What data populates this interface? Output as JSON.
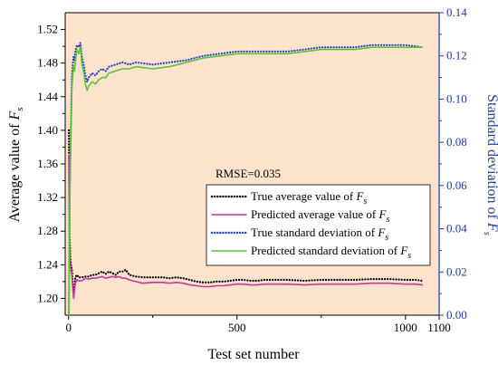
{
  "chart_data": {
    "type": "line",
    "title": "",
    "xlabel": "Test set number",
    "ylabel_left_prefix": "Average value of ",
    "ylabel_right_prefix": "Standard deviation of ",
    "symbol_main": "F",
    "symbol_sub": "s",
    "annotation": "RMSE=0.035",
    "background_color": "#fde3cc",
    "xlim": [
      -10,
      1100
    ],
    "x_ticks": [
      0,
      500,
      1000,
      1100
    ],
    "x_tick_labels": [
      "0",
      "500",
      "1000",
      "1100"
    ],
    "y_left_lim": [
      1.18,
      1.54
    ],
    "y_left_ticks": [
      1.2,
      1.24,
      1.28,
      1.32,
      1.36,
      1.4,
      1.44,
      1.48,
      1.52
    ],
    "y_left_tick_labels": [
      "1.20",
      "1.24",
      "1.28",
      "1.32",
      "1.36",
      "1.40",
      "1.44",
      "1.48",
      "1.52"
    ],
    "y_right_lim": [
      0.0,
      0.14
    ],
    "y_right_ticks": [
      0.0,
      0.02,
      0.04,
      0.06,
      0.08,
      0.1,
      0.12,
      0.14
    ],
    "y_right_tick_labels": [
      "0.00",
      "0.02",
      "0.04",
      "0.06",
      "0.08",
      "0.10",
      "0.12",
      "0.14"
    ],
    "legend_position": "center-right",
    "series": [
      {
        "name_prefix": "True average value of ",
        "axis": "left",
        "style": "dotted",
        "color": "#000000",
        "x": [
          1,
          2,
          3,
          5,
          7,
          10,
          12,
          15,
          18,
          20,
          25,
          30,
          40,
          50,
          60,
          70,
          80,
          90,
          100,
          110,
          120,
          130,
          140,
          150,
          160,
          170,
          180,
          200,
          220,
          250,
          280,
          300,
          320,
          340,
          360,
          380,
          400,
          420,
          440,
          460,
          480,
          500,
          520,
          540,
          560,
          580,
          600,
          620,
          650,
          700,
          750,
          800,
          850,
          900,
          950,
          1000,
          1030,
          1050
        ],
        "values": [
          1.4,
          1.33,
          1.28,
          1.25,
          1.24,
          1.235,
          1.22,
          1.205,
          1.215,
          1.225,
          1.228,
          1.225,
          1.225,
          1.226,
          1.226,
          1.228,
          1.228,
          1.23,
          1.232,
          1.229,
          1.232,
          1.23,
          1.228,
          1.232,
          1.232,
          1.234,
          1.228,
          1.226,
          1.225,
          1.225,
          1.225,
          1.224,
          1.225,
          1.224,
          1.222,
          1.22,
          1.219,
          1.219,
          1.22,
          1.22,
          1.221,
          1.222,
          1.222,
          1.221,
          1.221,
          1.222,
          1.222,
          1.222,
          1.222,
          1.221,
          1.222,
          1.222,
          1.222,
          1.223,
          1.223,
          1.222,
          1.222,
          1.221
        ]
      },
      {
        "name_prefix": "Predicted average value of ",
        "axis": "left",
        "style": "solid",
        "color": "#c0399e",
        "x": [
          1,
          2,
          3,
          5,
          7,
          10,
          12,
          15,
          18,
          20,
          25,
          30,
          40,
          50,
          60,
          70,
          80,
          90,
          100,
          110,
          120,
          130,
          140,
          150,
          160,
          170,
          180,
          200,
          220,
          250,
          280,
          300,
          320,
          340,
          360,
          380,
          400,
          420,
          440,
          460,
          480,
          500,
          520,
          540,
          560,
          580,
          600,
          620,
          650,
          700,
          750,
          800,
          850,
          900,
          950,
          1000,
          1030,
          1050
        ],
        "values": [
          1.37,
          1.3,
          1.26,
          1.24,
          1.235,
          1.228,
          1.215,
          1.2,
          1.21,
          1.218,
          1.222,
          1.221,
          1.221,
          1.224,
          1.223,
          1.224,
          1.224,
          1.225,
          1.226,
          1.224,
          1.225,
          1.226,
          1.225,
          1.226,
          1.224,
          1.224,
          1.222,
          1.22,
          1.218,
          1.219,
          1.219,
          1.218,
          1.219,
          1.218,
          1.216,
          1.215,
          1.214,
          1.214,
          1.215,
          1.215,
          1.216,
          1.217,
          1.217,
          1.216,
          1.216,
          1.217,
          1.217,
          1.217,
          1.217,
          1.216,
          1.217,
          1.217,
          1.217,
          1.218,
          1.218,
          1.217,
          1.217,
          1.216
        ]
      },
      {
        "name_prefix": "True standard deviation of ",
        "axis": "right",
        "style": "dotted",
        "color": "#2a44b8",
        "x": [
          1,
          2,
          4,
          6,
          8,
          10,
          12,
          15,
          18,
          20,
          25,
          30,
          35,
          40,
          45,
          50,
          55,
          60,
          70,
          80,
          90,
          100,
          110,
          120,
          140,
          160,
          180,
          200,
          250,
          300,
          350,
          400,
          450,
          500,
          550,
          600,
          650,
          700,
          750,
          800,
          850,
          900,
          950,
          1000,
          1050
        ],
        "values": [
          0.0,
          0.03,
          0.06,
          0.08,
          0.095,
          0.11,
          0.115,
          0.12,
          0.118,
          0.122,
          0.125,
          0.124,
          0.126,
          0.119,
          0.116,
          0.111,
          0.108,
          0.11,
          0.112,
          0.111,
          0.113,
          0.114,
          0.113,
          0.115,
          0.116,
          0.117,
          0.116,
          0.117,
          0.116,
          0.117,
          0.118,
          0.12,
          0.121,
          0.122,
          0.122,
          0.122,
          0.122,
          0.123,
          0.124,
          0.124,
          0.124,
          0.125,
          0.125,
          0.125,
          0.124
        ]
      },
      {
        "name_prefix": "Predicted standard deviation of ",
        "axis": "right",
        "style": "solid",
        "color": "#5cc23c",
        "x": [
          1,
          2,
          4,
          6,
          8,
          10,
          12,
          15,
          18,
          20,
          25,
          30,
          35,
          40,
          45,
          50,
          55,
          60,
          70,
          80,
          90,
          100,
          110,
          120,
          140,
          160,
          180,
          200,
          250,
          300,
          350,
          400,
          450,
          500,
          550,
          600,
          650,
          700,
          750,
          800,
          850,
          900,
          950,
          1000,
          1050
        ],
        "values": [
          0.0,
          0.028,
          0.057,
          0.076,
          0.09,
          0.105,
          0.11,
          0.115,
          0.113,
          0.117,
          0.123,
          0.121,
          0.124,
          0.116,
          0.112,
          0.107,
          0.104,
          0.106,
          0.108,
          0.107,
          0.109,
          0.11,
          0.11,
          0.112,
          0.113,
          0.114,
          0.114,
          0.115,
          0.114,
          0.115,
          0.117,
          0.119,
          0.12,
          0.121,
          0.121,
          0.121,
          0.121,
          0.122,
          0.123,
          0.123,
          0.123,
          0.124,
          0.124,
          0.124,
          0.124
        ]
      }
    ]
  }
}
